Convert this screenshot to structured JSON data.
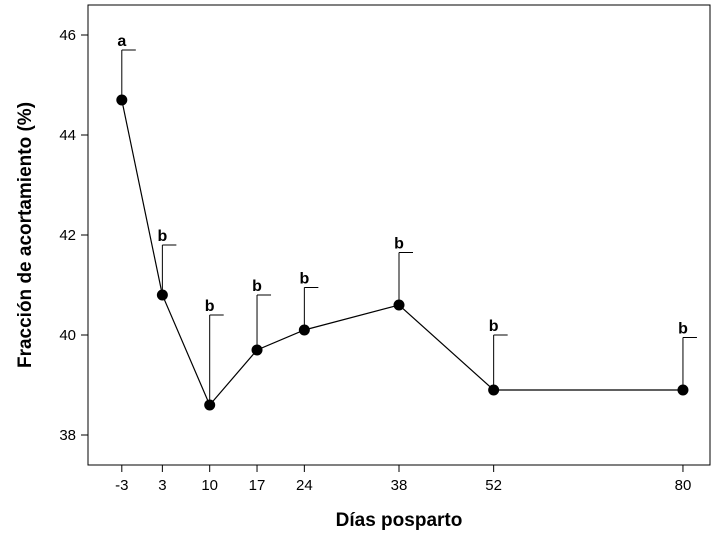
{
  "chart_data": {
    "type": "line",
    "title": "",
    "xlabel": "Días posparto",
    "ylabel": "Fracción de acortamiento (%)",
    "xlim": [
      -8,
      84
    ],
    "ylim": [
      37.4,
      46.6
    ],
    "x_ticks": [
      -3,
      3,
      10,
      17,
      24,
      38,
      52,
      80
    ],
    "x_tick_labels": [
      "-3",
      "3",
      "10",
      "17",
      "24",
      "38",
      "52",
      "80"
    ],
    "y_ticks": [
      38,
      40,
      42,
      44,
      46
    ],
    "y_tick_labels": [
      "38",
      "40",
      "42",
      "44",
      "46"
    ],
    "grid": false,
    "legend": "none",
    "series": [
      {
        "x": [
          -3,
          3,
          10,
          17,
          24,
          38,
          52,
          80
        ],
        "y": [
          44.7,
          40.8,
          38.6,
          39.7,
          40.1,
          40.6,
          38.9,
          38.9
        ],
        "error_upper": [
          1.0,
          1.0,
          1.8,
          1.1,
          0.85,
          1.05,
          1.1,
          1.05
        ],
        "labels": [
          "a",
          "b",
          "b",
          "b",
          "b",
          "b",
          "b",
          "b"
        ]
      }
    ],
    "colors": {
      "line": "#000000",
      "marker": "#000000"
    }
  }
}
